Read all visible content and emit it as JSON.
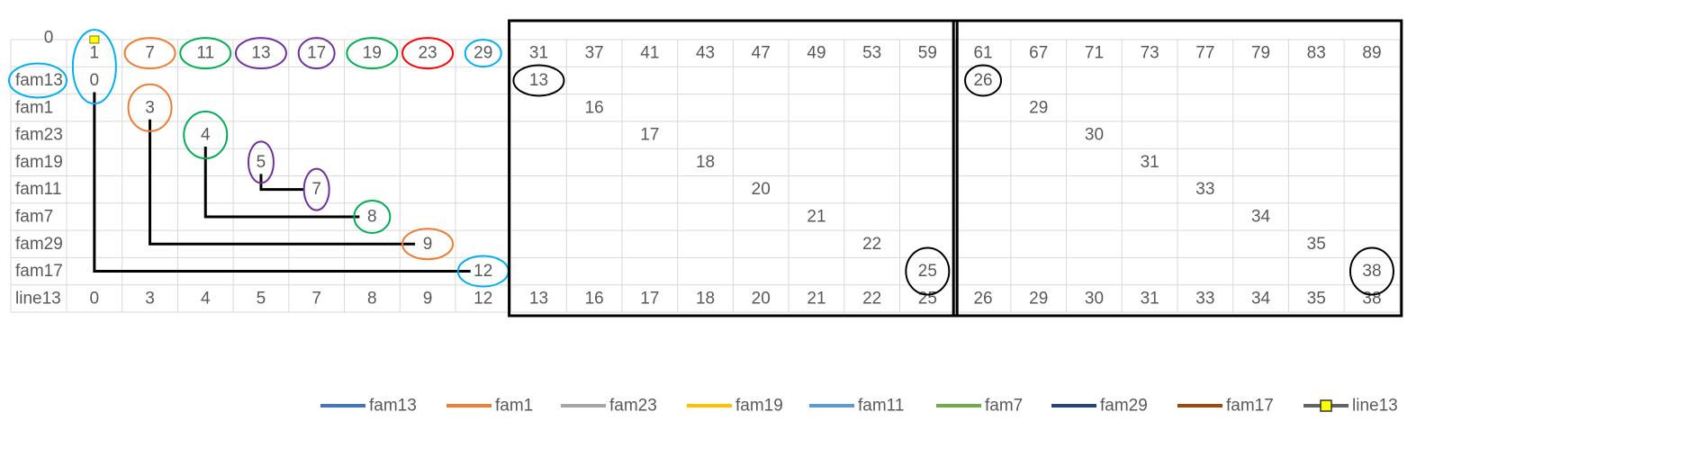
{
  "chart_data": {
    "type": "table",
    "top_axis_label": "0",
    "columns": [
      "1",
      "7",
      "11",
      "13",
      "17",
      "19",
      "23",
      "29",
      "31",
      "37",
      "41",
      "43",
      "47",
      "49",
      "53",
      "59",
      "61",
      "67",
      "71",
      "73",
      "77",
      "79",
      "83",
      "89"
    ],
    "rows": [
      {
        "name": "fam13",
        "cells": {
          "1": "0",
          "31": "13",
          "61": "26"
        }
      },
      {
        "name": "fam1",
        "cells": {
          "7": "3",
          "37": "16",
          "67": "29"
        }
      },
      {
        "name": "fam23",
        "cells": {
          "11": "4",
          "41": "17",
          "71": "30"
        }
      },
      {
        "name": "fam19",
        "cells": {
          "13": "5",
          "43": "18",
          "73": "31"
        }
      },
      {
        "name": "fam11",
        "cells": {
          "17": "7",
          "47": "20",
          "77": "33"
        }
      },
      {
        "name": "fam7",
        "cells": {
          "19": "8",
          "49": "21",
          "79": "34"
        }
      },
      {
        "name": "fam29",
        "cells": {
          "23": "9",
          "53": "22",
          "83": "35"
        }
      },
      {
        "name": "fam17",
        "cells": {
          "29": "12",
          "59": "25",
          "89": "38"
        }
      },
      {
        "name": "line13",
        "cells": {
          "1": "0",
          "7": "3",
          "11": "4",
          "13": "5",
          "17": "7",
          "19": "8",
          "23": "9",
          "29": "12",
          "31": "13",
          "37": "16",
          "41": "17",
          "43": "18",
          "47": "20",
          "49": "21",
          "53": "22",
          "59": "25",
          "61": "26",
          "67": "29",
          "71": "30",
          "73": "31",
          "77": "33",
          "79": "34",
          "83": "35",
          "89": "38"
        }
      }
    ],
    "highlights": [
      {
        "row": "header",
        "col": "1",
        "color": "#00b0f0",
        "shape": "tall"
      },
      {
        "row": "header",
        "col": "7",
        "color": "#ed7d31",
        "shape": "wide"
      },
      {
        "row": "header",
        "col": "11",
        "color": "#00b050",
        "shape": "wide"
      },
      {
        "row": "header",
        "col": "13",
        "color": "#7030a0",
        "shape": "wide"
      },
      {
        "row": "header",
        "col": "17",
        "color": "#7030a0",
        "shape": "narrow"
      },
      {
        "row": "header",
        "col": "19",
        "color": "#00b050",
        "shape": "wide"
      },
      {
        "row": "header",
        "col": "23",
        "color": "#ff0000",
        "shape": "wide"
      },
      {
        "row": "header",
        "col": "29",
        "color": "#00b0f0",
        "shape": "narrow-bold"
      },
      {
        "row": "fam13",
        "col": "label",
        "color": "#00b0f0",
        "shape": "label"
      },
      {
        "row": "fam13",
        "col": "31",
        "color": "#000000",
        "shape": "wide"
      },
      {
        "row": "fam13",
        "col": "61",
        "color": "#000000",
        "shape": "narrow"
      },
      {
        "row": "fam1",
        "col": "7",
        "color": "#ed7d31",
        "shape": "tall"
      },
      {
        "row": "fam23",
        "col": "11",
        "color": "#00b050",
        "shape": "tall"
      },
      {
        "row": "fam19",
        "col": "13",
        "color": "#7030a0",
        "shape": "slim"
      },
      {
        "row": "fam11",
        "col": "17",
        "color": "#7030a0",
        "shape": "slim"
      },
      {
        "row": "fam7",
        "col": "19",
        "color": "#00b050",
        "shape": "bold"
      },
      {
        "row": "fam29",
        "col": "23",
        "color": "#ed7d31",
        "shape": "wide"
      },
      {
        "row": "fam17",
        "col": "29",
        "color": "#00b0f0",
        "shape": "wide"
      },
      {
        "row": "fam17",
        "col": "59",
        "color": "#000000",
        "shape": "tall"
      },
      {
        "row": "fam17",
        "col": "89",
        "color": "#000000",
        "shape": "tall"
      }
    ],
    "connectors": [
      {
        "from": {
          "row": "fam13",
          "col": "1"
        },
        "to": {
          "row": "fam17",
          "col": "29"
        }
      },
      {
        "from": {
          "row": "fam1",
          "col": "7"
        },
        "to": {
          "row": "fam29",
          "col": "23"
        }
      },
      {
        "from": {
          "row": "fam23",
          "col": "11"
        },
        "to": {
          "row": "fam7",
          "col": "19"
        }
      },
      {
        "from": {
          "row": "fam19",
          "col": "13"
        },
        "to": {
          "row": "fam11",
          "col": "17"
        }
      }
    ],
    "box_groups": [
      {
        "first_col": "31",
        "last_col": "59"
      },
      {
        "first_col": "61",
        "last_col": "89"
      }
    ],
    "legend": [
      {
        "label": "fam13",
        "color": "#4472c4",
        "marker": "none"
      },
      {
        "label": "fam1",
        "color": "#ed7d31",
        "marker": "none"
      },
      {
        "label": "fam23",
        "color": "#a5a5a5",
        "marker": "none"
      },
      {
        "label": "fam19",
        "color": "#ffc000",
        "marker": "none"
      },
      {
        "label": "fam11",
        "color": "#5b9bd5",
        "marker": "none"
      },
      {
        "label": "fam7",
        "color": "#70ad47",
        "marker": "none"
      },
      {
        "label": "fam29",
        "color": "#264478",
        "marker": "none"
      },
      {
        "label": "fam17",
        "color": "#9e480e",
        "marker": "none"
      },
      {
        "label": "line13",
        "color": "#636363",
        "marker": "square",
        "marker_color": "#ffff00"
      }
    ],
    "legend_position": "bottom",
    "top_marker": {
      "col": "1",
      "color": "#ffff00"
    }
  }
}
